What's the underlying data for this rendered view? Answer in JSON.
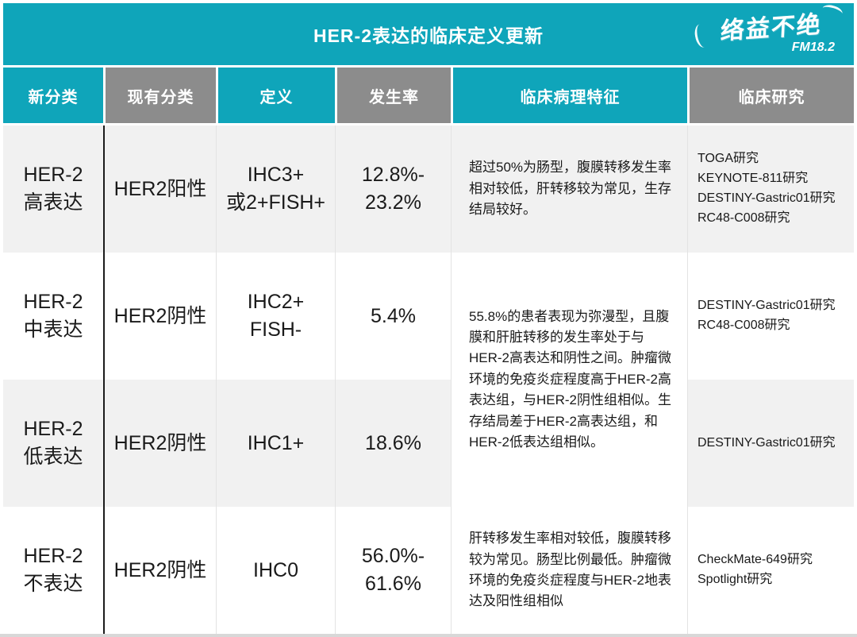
{
  "colors": {
    "teal": "#0FA5BA",
    "header_gray": "#8C8C8C",
    "row_alt": "#F1F1F1",
    "white": "#FFFFFF",
    "divider": "#1C1C1C",
    "cell_border": "#E3E3E3",
    "text_dark": "#1A1A1A",
    "bottom_bar": "#D8D8D8"
  },
  "banner": {
    "title": "HER-2表达的临床定义更新",
    "logo_text": "络益不绝",
    "logo_sub": "FM18.2"
  },
  "table": {
    "columns": [
      {
        "id": "new_class",
        "label": "新分类",
        "variant": "teal"
      },
      {
        "id": "current_class",
        "label": "现有分类",
        "variant": "gray"
      },
      {
        "id": "definition",
        "label": "定义",
        "variant": "teal"
      },
      {
        "id": "incidence",
        "label": "发生率",
        "variant": "gray"
      },
      {
        "id": "pathology",
        "label": "临床病理特征",
        "variant": "teal"
      },
      {
        "id": "studies",
        "label": "临床研究",
        "variant": "gray"
      }
    ],
    "rows": [
      {
        "new_class": "HER-2\n高表达",
        "current_class": "HER2阳性",
        "definition": "IHC3+\n或2+FISH+",
        "incidence": "12.8%-\n23.2%",
        "pathology": "超过50%为肠型，腹膜转移发生率相对较低，肝转移较为常见，生存结局较好。",
        "studies": "TOGA研究\nKEYNOTE-811研究\nDESTINY-Gastric01研究\nRC48-C008研究"
      },
      {
        "new_class": "HER-2\n中表达",
        "current_class": "HER2阴性",
        "definition": "IHC2+\nFISH-",
        "incidence": "5.4%",
        "pathology_merged": "55.8%的患者表现为弥漫型，且腹膜和肝脏转移的发生率处于与HER-2高表达和阴性之间。肿瘤微环境的免疫炎症程度高于HER-2高表达组，与HER-2阴性组相似。生存结局差于HER-2高表达组，和HER-2低表达组相似。",
        "pathology_rowspan": 2,
        "studies": "DESTINY-Gastric01研究\nRC48-C008研究"
      },
      {
        "new_class": "HER-2\n低表达",
        "current_class": "HER2阴性",
        "definition": "IHC1+",
        "incidence": "18.6%",
        "studies": "DESTINY-Gastric01研究"
      },
      {
        "new_class": "HER-2\n不表达",
        "current_class": "HER2阴性",
        "definition": "IHC0",
        "incidence": "56.0%-\n61.6%",
        "pathology": "肝转移发生率相对较低，腹膜转移较为常见。肠型比例最低。肿瘤微环境的免疫炎症程度与HER-2地表达及阳性组相似",
        "studies": "CheckMate-649研究\nSpotlight研究"
      }
    ]
  }
}
